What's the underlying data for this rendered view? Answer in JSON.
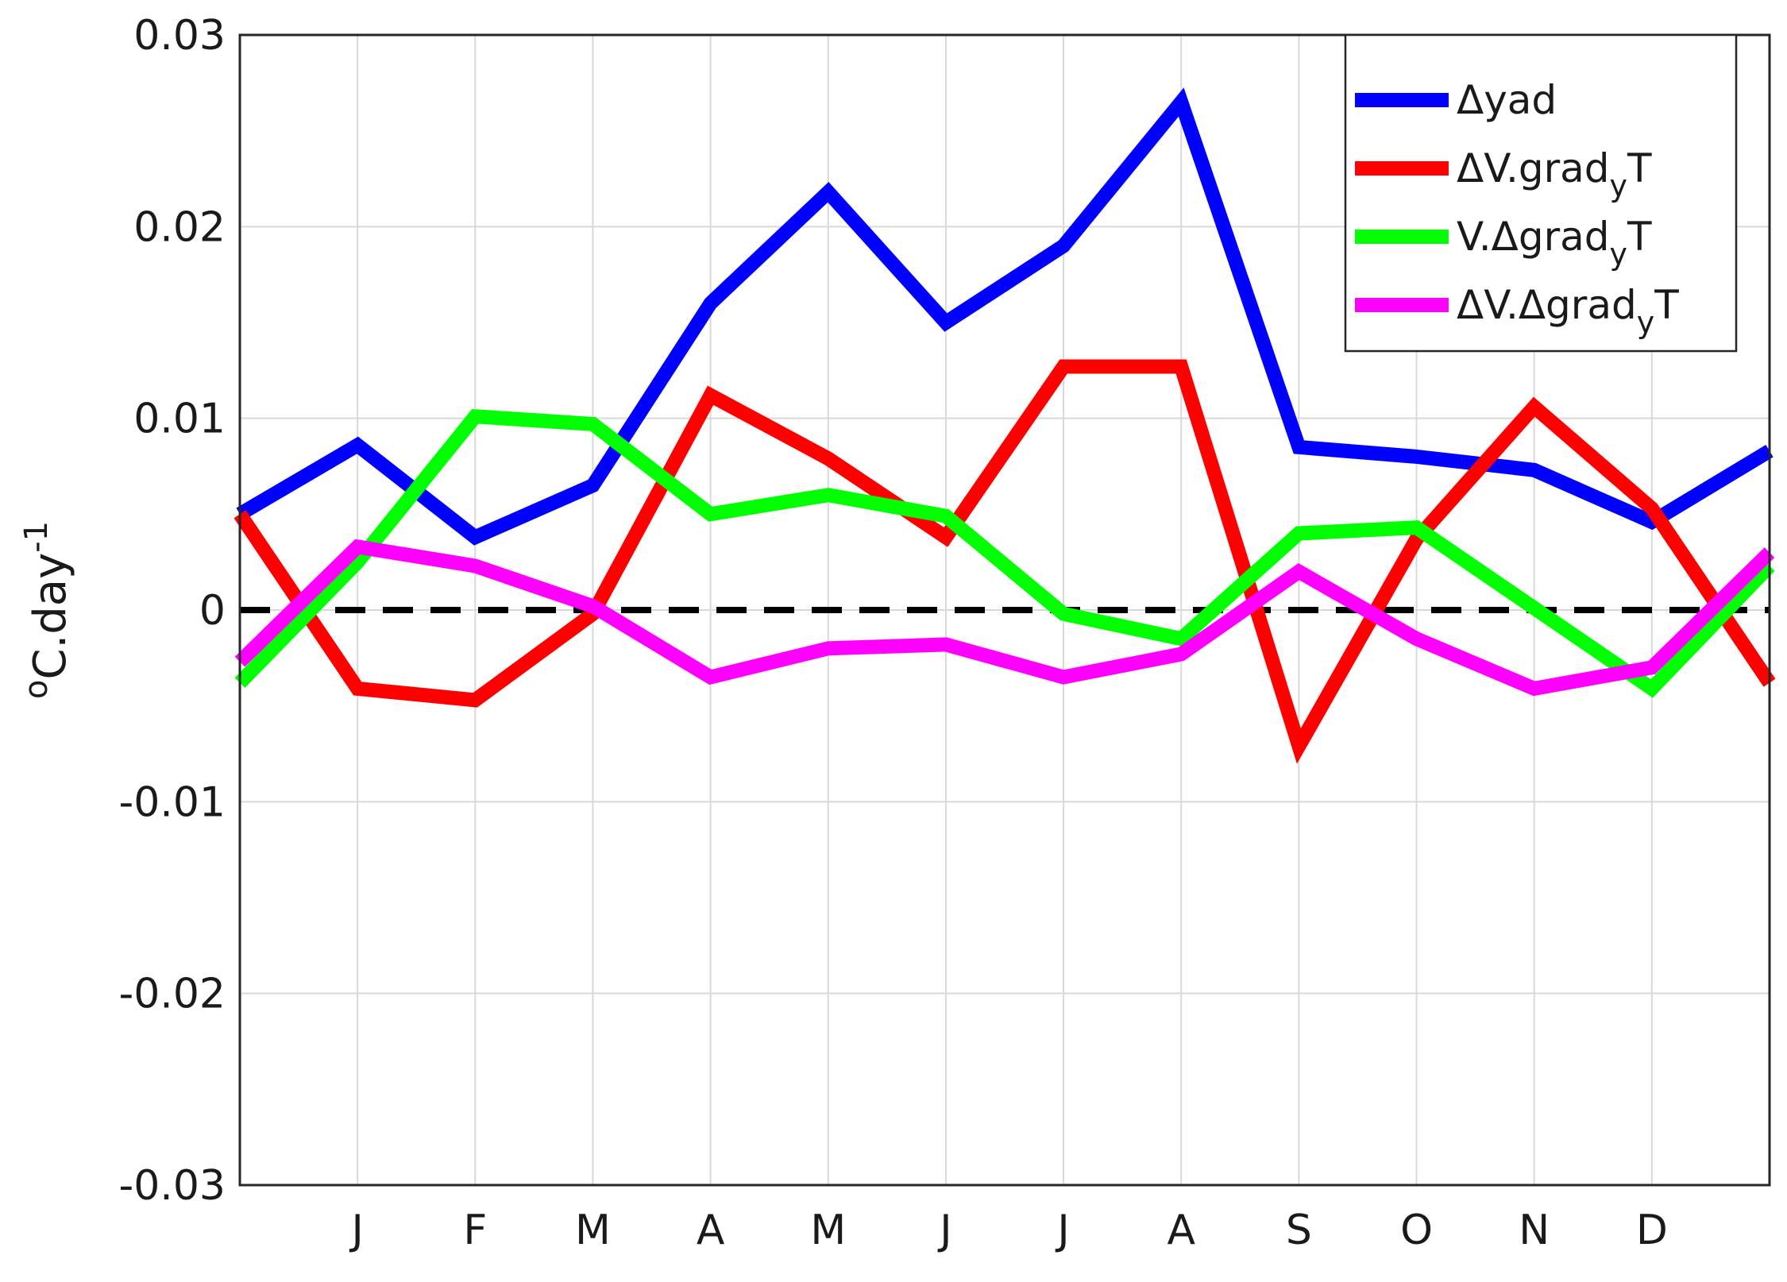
{
  "chart_data": {
    "type": "line",
    "title": "",
    "xlabel": "",
    "ylabel": {
      "base": "C.day",
      "pre_sup": "o",
      "post_sup": "-1"
    },
    "x_tick_labels": [
      "J",
      "F",
      "M",
      "A",
      "M",
      "J",
      "J",
      "A",
      "S",
      "O",
      "N",
      "D"
    ],
    "x": [
      0,
      1,
      2,
      3,
      4,
      5,
      6,
      7,
      8,
      9,
      10,
      11,
      12,
      13
    ],
    "xlim": [
      0,
      13
    ],
    "ylim": [
      -0.03,
      0.03
    ],
    "y_ticks": [
      -0.03,
      -0.02,
      -0.01,
      0,
      0.01,
      0.02,
      0.03
    ],
    "y_tick_labels": [
      "-0.03",
      "-0.02",
      "-0.01",
      "0",
      "0.01",
      "0.02",
      "0.03"
    ],
    "grid": true,
    "zero_line": {
      "style": "dashed",
      "color": "#000000"
    },
    "legend_position": "top-right",
    "series": [
      {
        "name": "Δyad",
        "color": "#0000ff",
        "legend": {
          "base": "Δyad",
          "sub": "",
          "tail": ""
        },
        "values": [
          0.005,
          0.0086,
          0.0038,
          0.0065,
          0.016,
          0.0218,
          0.015,
          0.019,
          0.0265,
          0.0085,
          0.008,
          0.0073,
          0.0046,
          0.0083
        ]
      },
      {
        "name": "ΔV.gradyT",
        "color": "#ff0000",
        "legend": {
          "base": "ΔV.grad",
          "sub": "y",
          "tail": "T"
        },
        "values": [
          0.005,
          -0.0041,
          -0.0047,
          -0.0002,
          0.0112,
          0.0079,
          0.0038,
          0.0127,
          0.0127,
          -0.0071,
          0.0037,
          0.0106,
          0.0053,
          -0.0038
        ]
      },
      {
        "name": "V.ΔgradyT",
        "color": "#00ff00",
        "legend": {
          "base": "V.Δgrad",
          "sub": "y",
          "tail": "T"
        },
        "values": [
          -0.0038,
          0.0025,
          0.0101,
          0.0097,
          0.005,
          0.006,
          0.0049,
          -0.0002,
          -0.0015,
          0.004,
          0.0043,
          0.0001,
          -0.0041,
          0.0023
        ]
      },
      {
        "name": "ΔV.ΔgradyT",
        "color": "#ff00ff",
        "legend": {
          "base": "ΔV.Δgrad",
          "sub": "y",
          "tail": "T"
        },
        "values": [
          -0.0027,
          0.0033,
          0.0023,
          0.0002,
          -0.0035,
          -0.002,
          -0.0018,
          -0.0035,
          -0.0023,
          0.002,
          -0.0015,
          -0.0041,
          -0.003,
          0.003
        ]
      }
    ]
  }
}
